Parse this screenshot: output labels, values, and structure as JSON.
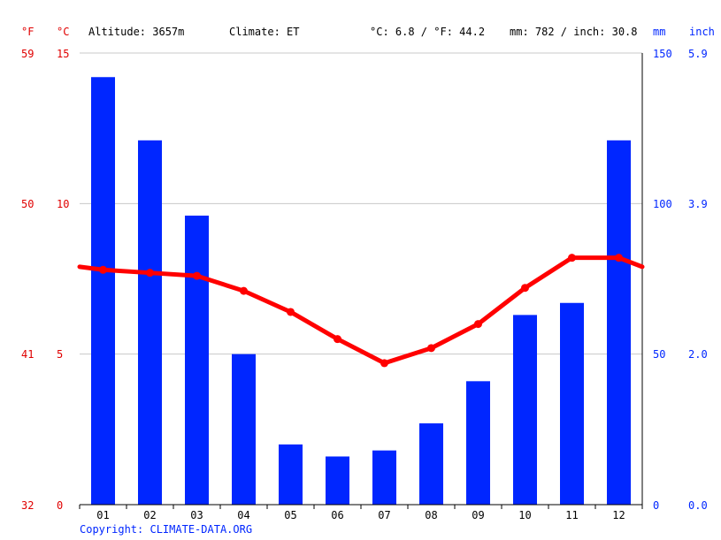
{
  "header": {
    "unit_f": "°F",
    "unit_c": "°C",
    "altitude": "Altitude: 3657m",
    "climate": "Climate: ET",
    "temp_avg": "°C: 6.8 / °F: 44.2",
    "precip_total": "mm: 782 / inch: 30.8",
    "unit_mm": "mm",
    "unit_inch": "inch"
  },
  "axes": {
    "left_f_ticks": [
      "59",
      "50",
      "41",
      "32"
    ],
    "left_c_ticks": [
      "15",
      "10",
      "5",
      "0"
    ],
    "right_mm_ticks": [
      "150",
      "100",
      "50",
      "0"
    ],
    "right_inch_ticks": [
      "5.9",
      "3.9",
      "2.0",
      "0.0"
    ]
  },
  "footer": {
    "copyright": "Copyright: CLIMATE-DATA.ORG"
  },
  "colors": {
    "temperature": "#ff0000",
    "precipitation": "#0026ff",
    "label_red": "#e00000",
    "label_blue": "#0026ff",
    "grid": "#c8c8c8",
    "axis": "#000000"
  },
  "chart_data": {
    "type": "bar",
    "categories": [
      "01",
      "02",
      "03",
      "04",
      "05",
      "06",
      "07",
      "08",
      "09",
      "10",
      "11",
      "12"
    ],
    "series": [
      {
        "kind": "bar",
        "axis": "precipitation_mm",
        "values": [
          142,
          121,
          96,
          50,
          20,
          16,
          18,
          27,
          41,
          63,
          67,
          121
        ]
      },
      {
        "kind": "line",
        "axis": "temperature_c",
        "values": [
          7.8,
          7.7,
          7.6,
          7.1,
          6.4,
          5.5,
          4.7,
          5.2,
          6.0,
          7.2,
          8.2,
          8.2
        ]
      }
    ],
    "line_edge_values": {
      "start": 7.9,
      "end": 7.9
    },
    "ylim_temperature_c": [
      0,
      15
    ],
    "ylim_precipitation_mm": [
      0,
      150
    ],
    "grid": true
  }
}
